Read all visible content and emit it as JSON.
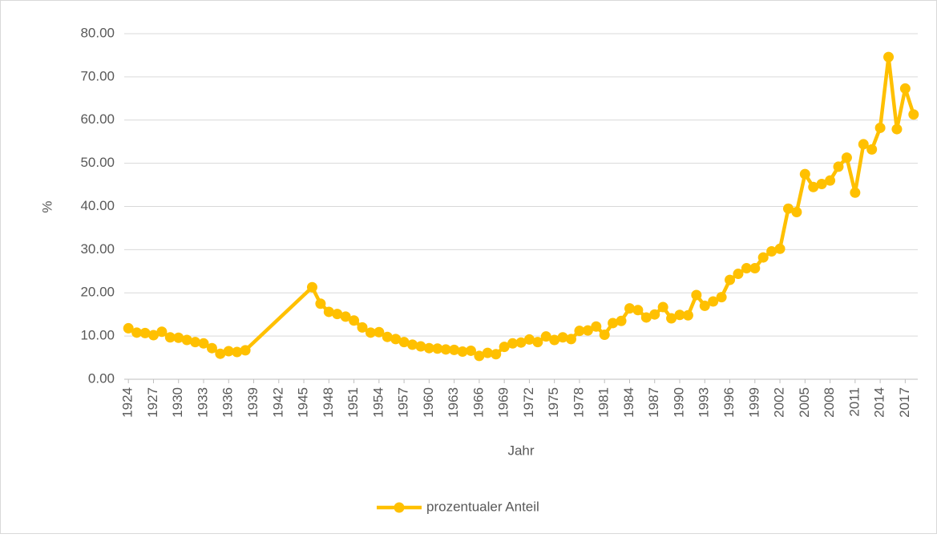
{
  "chart_data": {
    "type": "line",
    "x_label": "Jahr",
    "y_label": "%",
    "x": [
      1924,
      1925,
      1926,
      1927,
      1928,
      1929,
      1930,
      1931,
      1932,
      1933,
      1934,
      1935,
      1936,
      1937,
      1938,
      1946,
      1947,
      1948,
      1949,
      1950,
      1951,
      1952,
      1953,
      1954,
      1955,
      1956,
      1957,
      1958,
      1959,
      1960,
      1961,
      1962,
      1963,
      1964,
      1965,
      1966,
      1967,
      1968,
      1969,
      1970,
      1971,
      1972,
      1973,
      1974,
      1975,
      1976,
      1977,
      1978,
      1979,
      1980,
      1981,
      1982,
      1983,
      1984,
      1985,
      1986,
      1987,
      1988,
      1989,
      1990,
      1991,
      1992,
      1993,
      1994,
      1995,
      1996,
      1997,
      1998,
      1999,
      2000,
      2001,
      2002,
      2003,
      2004,
      2005,
      2006,
      2007,
      2008,
      2009,
      2010,
      2011,
      2012,
      2013,
      2014,
      2015,
      2016,
      2017,
      2018
    ],
    "series": [
      {
        "name": "prozentualer Anteil",
        "color": "#FFC000",
        "values": [
          11.8,
          10.8,
          10.7,
          10.2,
          11.0,
          9.7,
          9.6,
          9.1,
          8.6,
          8.3,
          7.2,
          5.9,
          6.5,
          6.3,
          6.7,
          21.3,
          17.5,
          15.6,
          15.1,
          14.5,
          13.6,
          12.0,
          10.8,
          10.9,
          9.8,
          9.3,
          8.6,
          8.0,
          7.6,
          7.2,
          7.1,
          6.9,
          6.8,
          6.4,
          6.6,
          5.4,
          6.1,
          5.8,
          7.5,
          8.3,
          8.5,
          9.2,
          8.6,
          9.9,
          9.1,
          9.7,
          9.3,
          11.2,
          11.3,
          12.2,
          10.3,
          13.0,
          13.5,
          16.4,
          16.0,
          14.3,
          15.0,
          16.7,
          14.1,
          14.9,
          14.8,
          19.5,
          17.0,
          18.0,
          19.0,
          23.0,
          24.4,
          25.7,
          25.7,
          28.2,
          29.6,
          30.2,
          39.5,
          38.7,
          47.5,
          44.5,
          45.2,
          46.0,
          49.2,
          51.3,
          43.2,
          54.4,
          53.2,
          58.2,
          74.6,
          57.9,
          67.3,
          61.3
        ]
      }
    ],
    "xlim": [
      1923.5,
      2018.5
    ],
    "xticks": [
      1924,
      1927,
      1930,
      1933,
      1936,
      1939,
      1942,
      1945,
      1948,
      1951,
      1954,
      1957,
      1960,
      1963,
      1966,
      1969,
      1972,
      1975,
      1978,
      1981,
      1984,
      1987,
      1990,
      1993,
      1996,
      1999,
      2002,
      2005,
      2008,
      2011,
      2014,
      2017
    ],
    "ylim": [
      0,
      80
    ],
    "yticks": [
      {
        "value": 0,
        "label": "0.00"
      },
      {
        "value": 10,
        "label": "10.00"
      },
      {
        "value": 20,
        "label": "20.00"
      },
      {
        "value": 30,
        "label": "30.00"
      },
      {
        "value": 40,
        "label": "40.00"
      },
      {
        "value": 50,
        "label": "50.00"
      },
      {
        "value": 60,
        "label": "60.00"
      },
      {
        "value": 70,
        "label": "70.00"
      },
      {
        "value": 80,
        "label": "80.00"
      }
    ],
    "grid": true,
    "legend": "bottom"
  }
}
